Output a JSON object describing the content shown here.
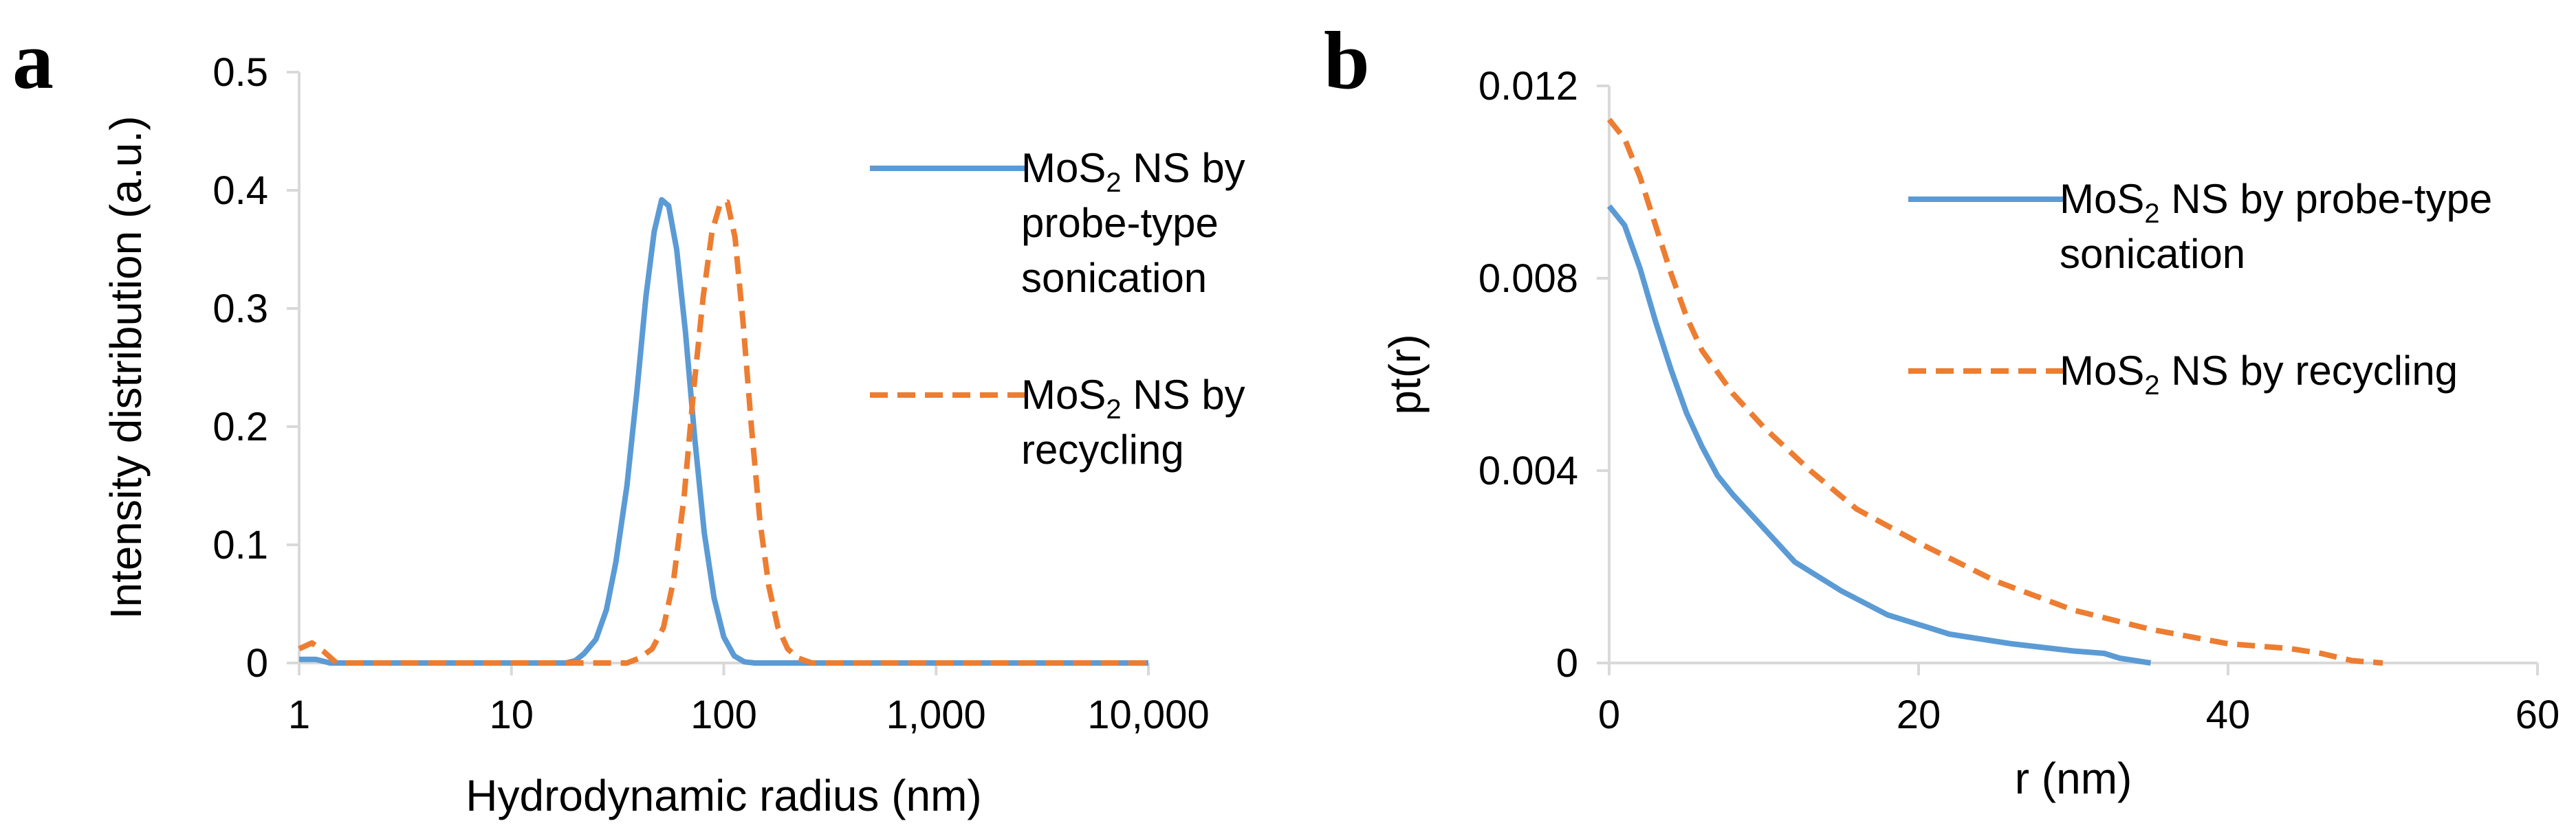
{
  "chart_data": [
    {
      "panel_label": "a",
      "type": "line",
      "xscale": "log",
      "xlabel": "Hydrodynamic radius (nm)",
      "ylabel": "Intensity distribution (a.u.)",
      "xlim": [
        1,
        10000
      ],
      "ylim": [
        0,
        0.5
      ],
      "xticks": [
        1,
        10,
        100,
        1000,
        10000
      ],
      "xtick_labels": [
        "1",
        "10",
        "100",
        "1,000",
        "10,000"
      ],
      "yticks": [
        0,
        0.1,
        0.2,
        0.3,
        0.4,
        0.5
      ],
      "ytick_labels": [
        "0",
        "0.1",
        "0.2",
        "0.3",
        "0.4",
        "0.5"
      ],
      "grid": false,
      "legend_position": "top-right",
      "series": [
        {
          "name": "MoS2 NS by probe-type sonication",
          "legend_lines": [
            [
              "MoS",
              "2",
              " NS by"
            ],
            [
              "probe-type"
            ],
            [
              "sonication"
            ]
          ],
          "color": "#5b9bd5",
          "dash": "solid",
          "points": [
            [
              1,
              0.003
            ],
            [
              1.2,
              0.003
            ],
            [
              1.4,
              0
            ],
            [
              5,
              0
            ],
            [
              18,
              0
            ],
            [
              20,
              0.002
            ],
            [
              22,
              0.008
            ],
            [
              25,
              0.02
            ],
            [
              28,
              0.045
            ],
            [
              31,
              0.085
            ],
            [
              35,
              0.15
            ],
            [
              39,
              0.23
            ],
            [
              43,
              0.31
            ],
            [
              47,
              0.365
            ],
            [
              51,
              0.392
            ],
            [
              55,
              0.387
            ],
            [
              60,
              0.35
            ],
            [
              66,
              0.28
            ],
            [
              73,
              0.19
            ],
            [
              81,
              0.11
            ],
            [
              90,
              0.055
            ],
            [
              100,
              0.022
            ],
            [
              112,
              0.006
            ],
            [
              125,
              0.001
            ],
            [
              140,
              0
            ],
            [
              10000,
              0
            ]
          ]
        },
        {
          "name": "MoS2 NS by recycling",
          "legend_lines": [
            [
              "MoS",
              "2",
              " NS by"
            ],
            [
              "recycling"
            ]
          ],
          "color": "#ed7d31",
          "dash": "dashed",
          "points": [
            [
              1,
              0.012
            ],
            [
              1.15,
              0.017
            ],
            [
              1.3,
              0.01
            ],
            [
              1.5,
              0
            ],
            [
              5,
              0
            ],
            [
              35,
              0
            ],
            [
              40,
              0.004
            ],
            [
              46,
              0.012
            ],
            [
              52,
              0.03
            ],
            [
              58,
              0.07
            ],
            [
              65,
              0.14
            ],
            [
              72,
              0.23
            ],
            [
              80,
              0.31
            ],
            [
              88,
              0.365
            ],
            [
              96,
              0.388
            ],
            [
              104,
              0.39
            ],
            [
              113,
              0.36
            ],
            [
              123,
              0.29
            ],
            [
              135,
              0.2
            ],
            [
              148,
              0.12
            ],
            [
              163,
              0.065
            ],
            [
              180,
              0.03
            ],
            [
              200,
              0.012
            ],
            [
              225,
              0.004
            ],
            [
              260,
              0
            ],
            [
              10000,
              0
            ]
          ]
        }
      ]
    },
    {
      "panel_label": "b",
      "type": "line",
      "xlabel": "r (nm)",
      "ylabel": "pt(r)",
      "xlim": [
        0,
        60
      ],
      "ylim": [
        0,
        0.012
      ],
      "xticks": [
        0,
        20,
        40,
        60
      ],
      "xtick_labels": [
        "0",
        "20",
        "40",
        "60"
      ],
      "yticks": [
        0,
        0.004,
        0.008,
        0.012
      ],
      "ytick_labels": [
        "0",
        "0.004",
        "0.008",
        "0.012"
      ],
      "grid": false,
      "legend_position": "top-right",
      "series": [
        {
          "name": "MoS2 NS by probe-type sonication",
          "legend_lines": [
            [
              "MoS",
              "2",
              " NS by probe-type"
            ],
            [
              "sonication"
            ]
          ],
          "color": "#5b9bd5",
          "dash": "solid",
          "points": [
            [
              0,
              0.0095
            ],
            [
              1,
              0.0091
            ],
            [
              2,
              0.0082
            ],
            [
              3,
              0.0071
            ],
            [
              4,
              0.0061
            ],
            [
              5,
              0.0052
            ],
            [
              6,
              0.0045
            ],
            [
              7,
              0.0039
            ],
            [
              8,
              0.0035
            ],
            [
              10,
              0.0028
            ],
            [
              12,
              0.0021
            ],
            [
              15,
              0.0015
            ],
            [
              18,
              0.001
            ],
            [
              22,
              0.0006
            ],
            [
              26,
              0.0004
            ],
            [
              30,
              0.00025
            ],
            [
              32,
              0.0002
            ],
            [
              33,
              0.0001
            ],
            [
              35,
              0
            ]
          ]
        },
        {
          "name": "MoS2 NS by recycling",
          "legend_lines": [
            [
              "MoS",
              "2",
              " NS by recycling"
            ]
          ],
          "color": "#ed7d31",
          "dash": "dashed",
          "points": [
            [
              0,
              0.0113
            ],
            [
              1,
              0.0109
            ],
            [
              2,
              0.0101
            ],
            [
              3,
              0.0091
            ],
            [
              4,
              0.0081
            ],
            [
              5,
              0.0072
            ],
            [
              6,
              0.0065
            ],
            [
              8,
              0.0056
            ],
            [
              10,
              0.0049
            ],
            [
              13,
              0.004
            ],
            [
              16,
              0.0032
            ],
            [
              20,
              0.0025
            ],
            [
              25,
              0.0017
            ],
            [
              30,
              0.0011
            ],
            [
              35,
              0.0007
            ],
            [
              40,
              0.0004
            ],
            [
              44,
              0.0003
            ],
            [
              46,
              0.0002
            ],
            [
              48,
              5e-05
            ],
            [
              50,
              0
            ]
          ]
        }
      ]
    }
  ]
}
